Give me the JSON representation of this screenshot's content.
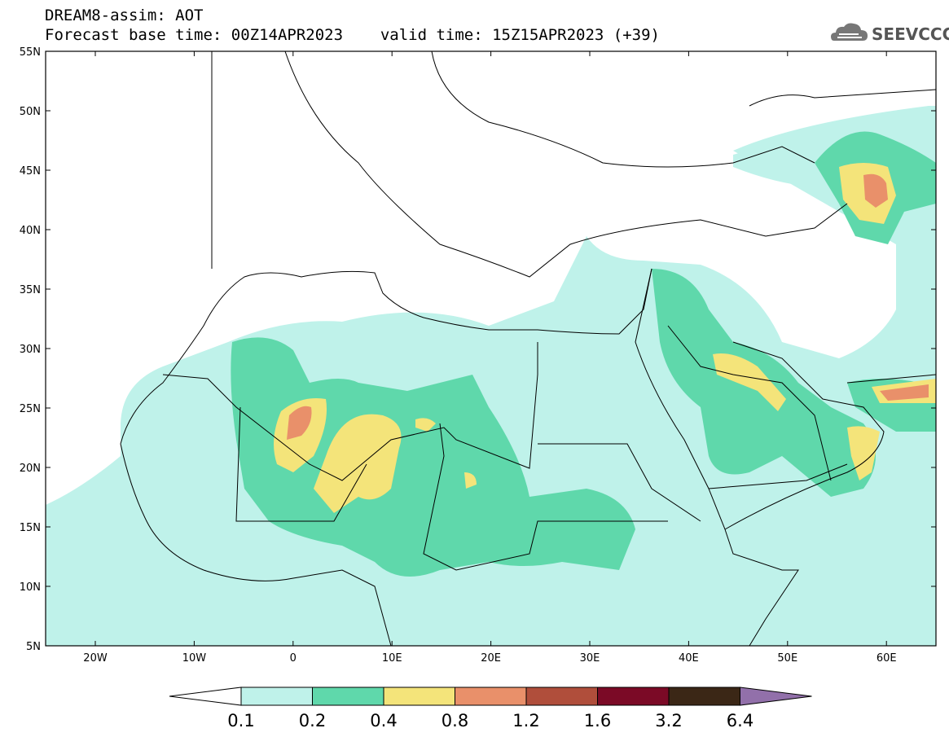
{
  "header": {
    "model_line": "DREAM8-assim: AOT",
    "base_time_label": "Forecast base time: 00Z14APR2023",
    "valid_time_label": "valid time: 15Z15APR2023 (+39)",
    "logo_text": "SEEVCCC"
  },
  "map": {
    "lat_labels": [
      "55N",
      "50N",
      "45N",
      "40N",
      "35N",
      "30N",
      "25N",
      "20N",
      "15N",
      "10N",
      "5N"
    ],
    "lon_labels": [
      "20W",
      "10W",
      "0",
      "10E",
      "20E",
      "30E",
      "40E",
      "50E",
      "60E"
    ]
  },
  "colorbar": {
    "levels": [
      "0.1",
      "0.2",
      "0.4",
      "0.8",
      "1.2",
      "1.6",
      "3.2",
      "6.4"
    ],
    "colors": [
      "#ffffff",
      "#bff2ea",
      "#5fd8ab",
      "#f4e47a",
      "#e9906a",
      "#b04e3b",
      "#7b0a26",
      "#3b2716",
      "#9270aa"
    ]
  }
}
